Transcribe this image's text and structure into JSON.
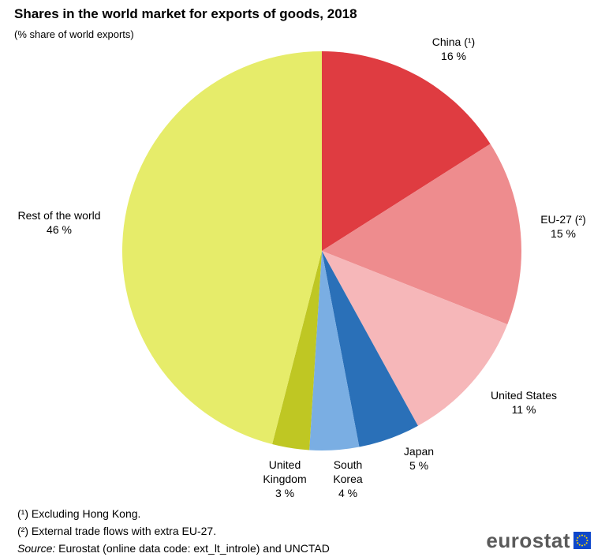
{
  "title": "Shares in the world market for exports of goods, 2018",
  "subtitle": "(% share of world exports)",
  "chart_data": {
    "type": "pie",
    "slices": [
      {
        "name": "China (¹)",
        "value_label": "16 %",
        "value": 16,
        "color": "#df3c41"
      },
      {
        "name": "EU-27 (²)",
        "value_label": "15 %",
        "value": 15,
        "color": "#ee8c8e"
      },
      {
        "name": "United States",
        "value_label": "11 %",
        "value": 11,
        "color": "#f6b7b9"
      },
      {
        "name": "Japan",
        "value_label": "5 %",
        "value": 5,
        "color": "#2a70b8"
      },
      {
        "name": "South Korea",
        "value_label": "4 %",
        "value": 4,
        "color": "#7aaee3"
      },
      {
        "name": "United Kingdom",
        "value_label": "3 %",
        "value": 3,
        "color": "#bfc723"
      },
      {
        "name": "Rest of the world",
        "value_label": "46 %",
        "value": 46,
        "color": "#e6ec6a"
      }
    ],
    "start": "top",
    "direction": "clockwise"
  },
  "footnotes": [
    "(¹) Excluding Hong Kong.",
    "(²) External trade flows with extra EU-27."
  ],
  "source_label": "Source:",
  "source_text": " Eurostat (online data code: ext_lt_introle) and UNCTAD",
  "logo": {
    "text": "eurostat",
    "icon": "eu-flag-icon",
    "flag_color": "#0e47cb",
    "star_color": "#ffdd00"
  }
}
